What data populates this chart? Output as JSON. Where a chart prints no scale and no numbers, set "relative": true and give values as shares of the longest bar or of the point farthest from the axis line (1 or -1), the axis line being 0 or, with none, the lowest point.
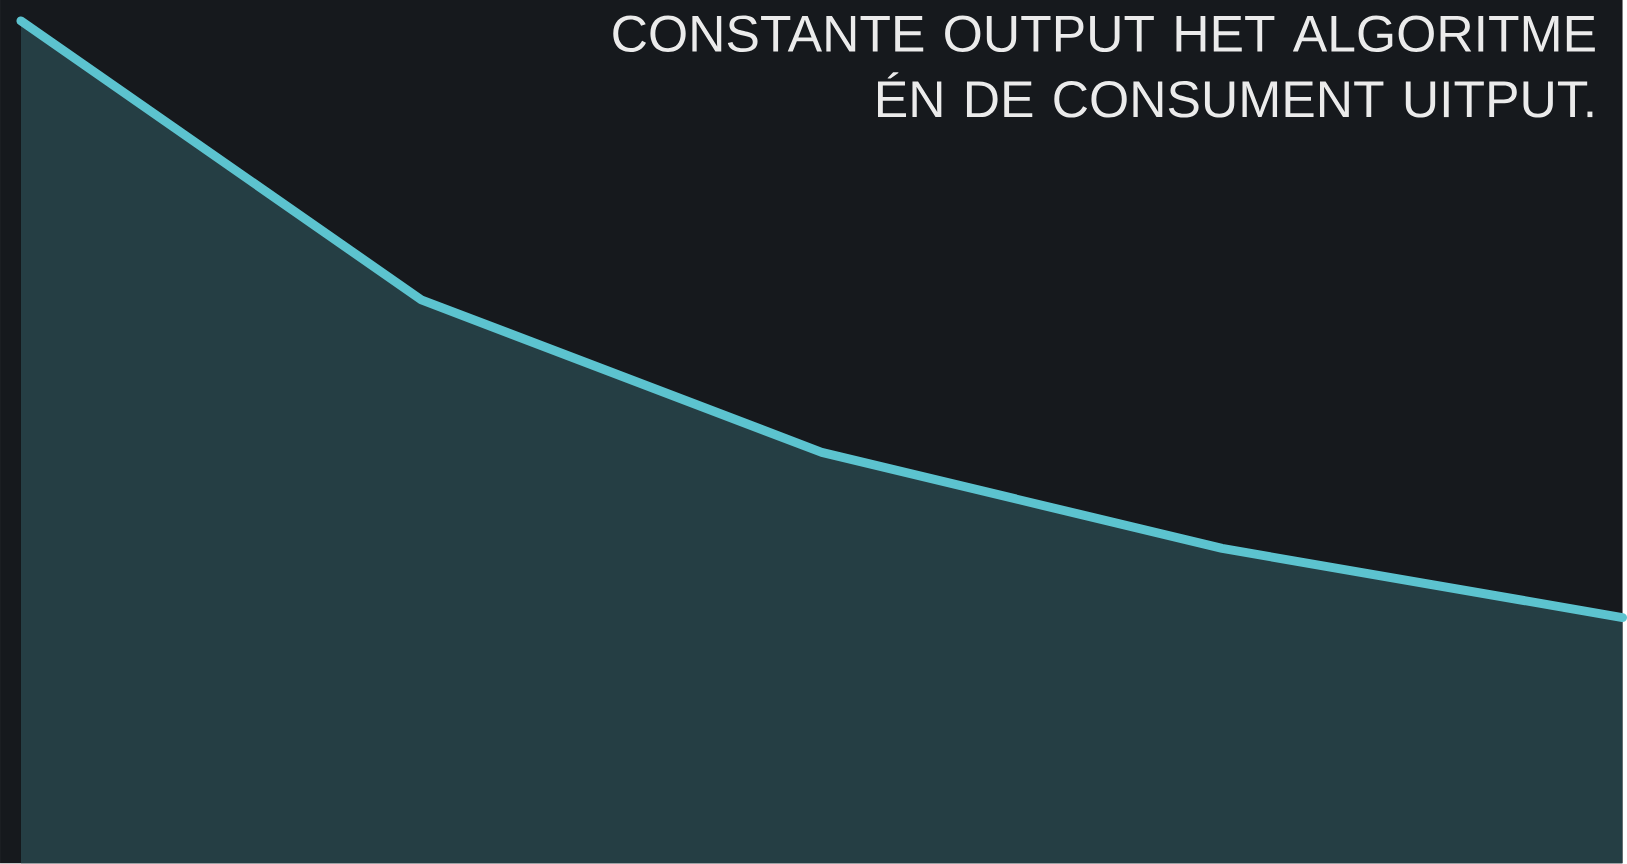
{
  "chart_data": {
    "type": "area",
    "title": "CONSTANTE OUTPUT HET ALGORITME ÉN DE CONSUMENT UITPUT.",
    "categories": [
      null,
      null,
      null,
      null,
      null
    ],
    "values": [
      1,
      0.669,
      0.488,
      0.374,
      0.292
    ],
    "color": "#5cc3cf",
    "relative": true
  }
}
